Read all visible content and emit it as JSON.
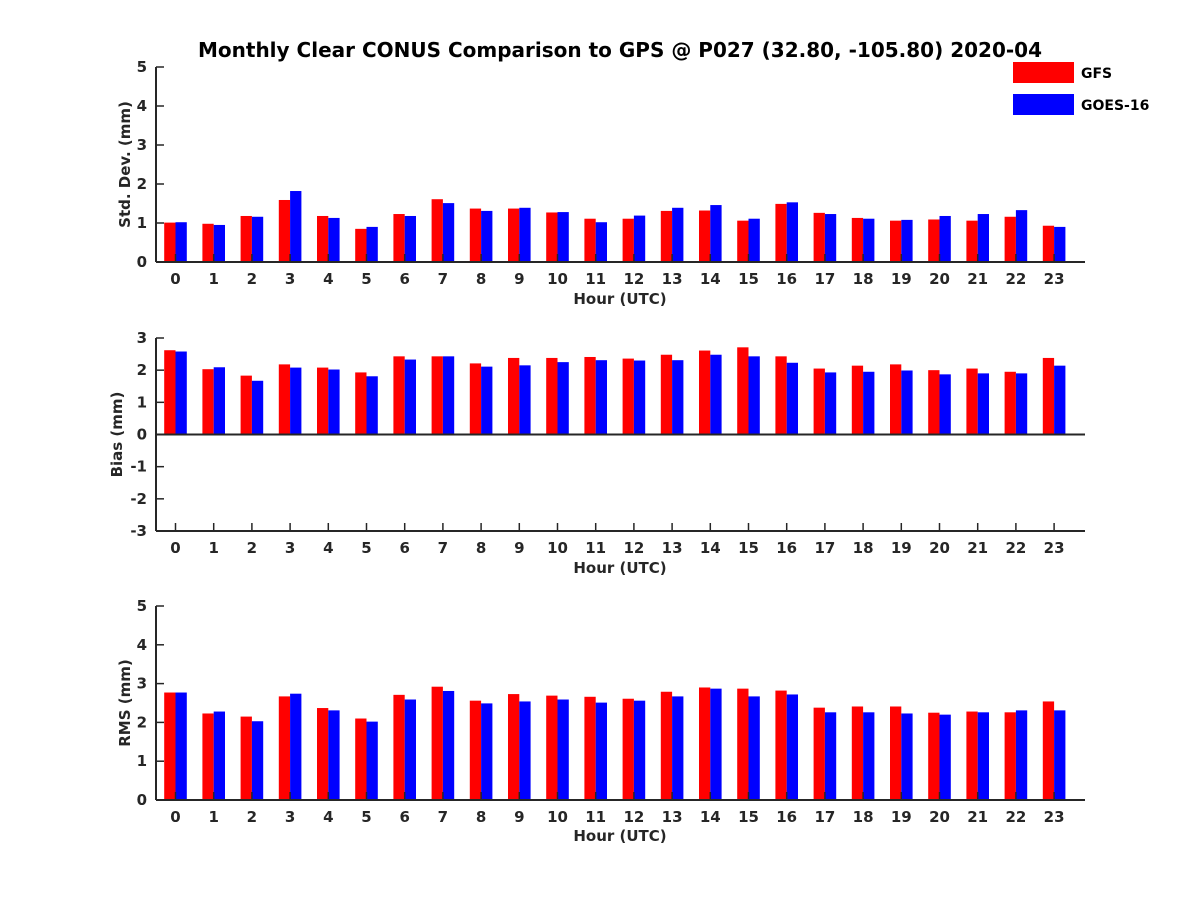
{
  "chart_data": {
    "title": "Monthly Clear CONUS Comparison to GPS @ P027 (32.80, -105.80) 2020-04",
    "legend": {
      "placement": "top-right",
      "entries": [
        {
          "name": "GFS",
          "color": "#ff0000"
        },
        {
          "name": "GOES-16",
          "color": "#0000ff"
        }
      ]
    },
    "panels": [
      {
        "type": "bar",
        "xlabel": "Hour (UTC)",
        "ylabel": "Std. Dev. (mm)",
        "ylim": [
          0,
          5
        ],
        "yticks": [
          0,
          1,
          2,
          3,
          4,
          5
        ],
        "categories": [
          "0",
          "1",
          "2",
          "3",
          "4",
          "5",
          "6",
          "7",
          "8",
          "9",
          "10",
          "11",
          "12",
          "13",
          "14",
          "15",
          "16",
          "17",
          "18",
          "19",
          "20",
          "21",
          "22",
          "23"
        ],
        "series": [
          {
            "name": "GFS",
            "color": "#ff0000",
            "values": [
              1.01,
              0.98,
              1.18,
              1.59,
              1.18,
              0.85,
              1.23,
              1.61,
              1.37,
              1.37,
              1.27,
              1.11,
              1.11,
              1.31,
              1.32,
              1.06,
              1.49,
              1.26,
              1.13,
              1.06,
              1.09,
              1.06,
              1.16,
              0.93
            ]
          },
          {
            "name": "GOES-16",
            "color": "#0000ff",
            "values": [
              1.02,
              0.95,
              1.16,
              1.82,
              1.13,
              0.9,
              1.18,
              1.51,
              1.31,
              1.39,
              1.28,
              1.02,
              1.19,
              1.39,
              1.46,
              1.11,
              1.53,
              1.23,
              1.11,
              1.08,
              1.18,
              1.23,
              1.33,
              0.9
            ]
          }
        ]
      },
      {
        "type": "bar",
        "xlabel": "Hour (UTC)",
        "ylabel": "Bias (mm)",
        "ylim": [
          -3,
          3
        ],
        "yticks": [
          -3,
          -2,
          -1,
          0,
          1,
          2,
          3
        ],
        "categories": [
          "0",
          "1",
          "2",
          "3",
          "4",
          "5",
          "6",
          "7",
          "8",
          "9",
          "10",
          "11",
          "12",
          "13",
          "14",
          "15",
          "16",
          "17",
          "18",
          "19",
          "20",
          "21",
          "22",
          "23"
        ],
        "series": [
          {
            "name": "GFS",
            "color": "#ff0000",
            "values": [
              2.62,
              2.03,
              1.83,
              2.18,
              2.08,
              1.93,
              2.43,
              2.43,
              2.21,
              2.38,
              2.38,
              2.41,
              2.36,
              2.48,
              2.61,
              2.71,
              2.43,
              2.05,
              2.14,
              2.18,
              2.0,
              2.05,
              1.95,
              2.38
            ]
          },
          {
            "name": "GOES-16",
            "color": "#0000ff",
            "values": [
              2.58,
              2.09,
              1.67,
              2.08,
              2.02,
              1.81,
              2.33,
              2.43,
              2.11,
              2.15,
              2.25,
              2.31,
              2.3,
              2.31,
              2.48,
              2.43,
              2.23,
              1.93,
              1.95,
              1.99,
              1.87,
              1.9,
              1.9,
              2.14
            ]
          }
        ]
      },
      {
        "type": "bar",
        "xlabel": "Hour (UTC)",
        "ylabel": "RMS (mm)",
        "ylim": [
          0,
          5
        ],
        "yticks": [
          0,
          1,
          2,
          3,
          4,
          5
        ],
        "categories": [
          "0",
          "1",
          "2",
          "3",
          "4",
          "5",
          "6",
          "7",
          "8",
          "9",
          "10",
          "11",
          "12",
          "13",
          "14",
          "15",
          "16",
          "17",
          "18",
          "19",
          "20",
          "21",
          "22",
          "23"
        ],
        "series": [
          {
            "name": "GFS",
            "color": "#ff0000",
            "values": [
              2.77,
              2.23,
              2.15,
              2.67,
              2.37,
              2.1,
              2.71,
              2.92,
              2.56,
              2.73,
              2.69,
              2.66,
              2.61,
              2.79,
              2.9,
              2.87,
              2.82,
              2.38,
              2.41,
              2.41,
              2.25,
              2.28,
              2.26,
              2.54
            ]
          },
          {
            "name": "GOES-16",
            "color": "#0000ff",
            "values": [
              2.77,
              2.28,
              2.03,
              2.74,
              2.31,
              2.02,
              2.59,
              2.81,
              2.49,
              2.54,
              2.59,
              2.51,
              2.56,
              2.67,
              2.87,
              2.67,
              2.72,
              2.26,
              2.26,
              2.23,
              2.2,
              2.26,
              2.31,
              2.31
            ]
          }
        ]
      }
    ]
  }
}
